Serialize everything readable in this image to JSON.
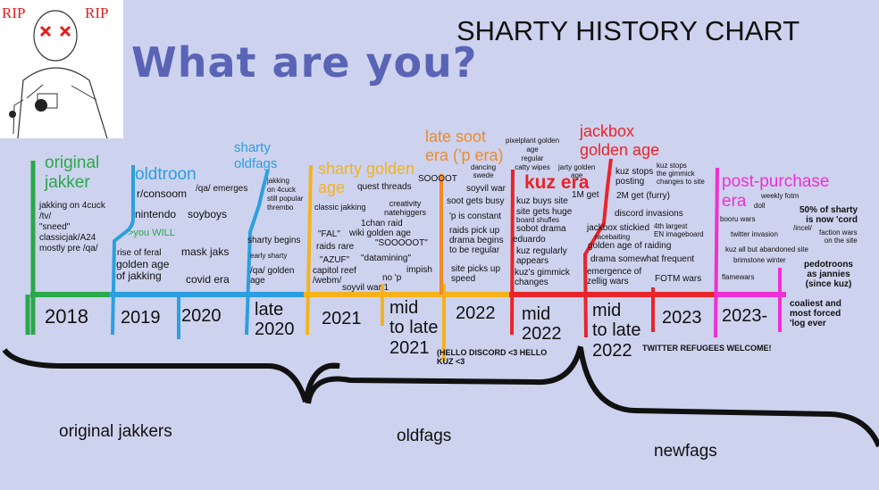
{
  "header": {
    "question": "What are you?",
    "chart_title": "SHARTY HISTORY CHART",
    "rip_left": "RIP",
    "rip_right": "RIP"
  },
  "eras": [
    {
      "label": "original\njakker",
      "color": "#2aa84a"
    },
    {
      "label": "oldtroon",
      "color": "#2b9fe0"
    },
    {
      "label": "sharty\noldfags",
      "color": "#2b9fe0"
    },
    {
      "label": "sharty golden\nage",
      "color": "#f6b21b"
    },
    {
      "label": "late soot\nera ('p era)",
      "color": "#f08a24"
    },
    {
      "label": "kuz era",
      "color": "#e8252a"
    },
    {
      "label": "jackbox\ngolden age",
      "color": "#e8252a"
    },
    {
      "label": "post-purchase\nera",
      "color": "#ee2fd6"
    }
  ],
  "years": [
    "2018",
    "2019",
    "2020",
    "late\n2020",
    "2021",
    "mid\nto late\n2021",
    "2022",
    "mid\n2022",
    "mid\nto late\n2022",
    "2023",
    "2023-"
  ],
  "events": {
    "e_oj1": "jakking on 4cuck\n/tv/\n\"sneed\"\nclassicjak/A24\nmostly pre /qa/",
    "e_ot1": "r/consoom",
    "e_ot2": "nintendo",
    "e_ot3": "soyboys",
    "e_ot4": ">you WILL",
    "e_ot5": "rise of feral",
    "e_ot6": "golden age\nof jakking",
    "e_ot7": "/qa/ emerges",
    "e_ot8": "mask jaks",
    "e_ot9": "covid era",
    "e_sf1": "jakking\non 4cuck\nstill popular\nthrembo",
    "e_sf2": "sharty begins",
    "e_sf3": "early sharty",
    "e_sf4": "/qa/ golden\nage",
    "e_ga1": "quest threads",
    "e_ga2": "classic jakking",
    "e_ga3": "creativity\nnatehiggers",
    "e_ga4": "1chan raid",
    "e_ga5": "\"FAL\"",
    "e_ga6": "wiki golden age",
    "e_ga7": "\"SOOOOOT\"",
    "e_ga8": "raids rare",
    "e_ga9": "\"AZUF\"",
    "e_ga10": "\"datamining\"",
    "e_ga11": "capitol reef\n/webm/",
    "e_ga12": "soyvil war 1",
    "e_ga13": "no 'p",
    "e_ga14": "impish",
    "e_ls1": "SOOOOT",
    "e_ls2": "dancing\nswede",
    "e_ls3": "soyvil war",
    "e_ls4": "soot gets busy",
    "e_ls5": "'p is constant",
    "e_ls6": "raids pick up\ndrama begins\nto be regular",
    "e_ls7": "site picks up\nspeed",
    "e_kz0": "pixelplant golden\nage\nregular\ncatty wipes",
    "e_kz1": "jarty golden\nage",
    "e_kz2": "1M get",
    "e_kz3": "kuz buys site",
    "e_kz4": "site gets huge",
    "e_kz5": "board shufles",
    "e_kz6": "sobot drama",
    "e_kz7": "eduardo",
    "e_kz8": "kuz regularly\nappears",
    "e_kz9": "kuz's gimmick\nchanges",
    "e_jb1": "kuz stops\nposting",
    "e_jb2": "kuz stops\nthe gimmick\nchanges to site",
    "e_jb3": "2M get (furry)",
    "e_jb4": "discord invasions",
    "e_jb5": "jackbox stickied",
    "e_jb6": "racebaiting",
    "e_jb7": "4th largest\nEN imageboard",
    "e_jb8": "golden age of raiding",
    "e_jb9": "drama somewhat frequent",
    "e_jb10": "emergence of\nzellig wars",
    "e_jb11": "FOTM wars",
    "e_pp1": "weekly fotm",
    "e_pp2": "doll",
    "e_pp3": "booru wars",
    "e_pp4": "twitter invasion",
    "e_pp5": "/incel/",
    "e_pp6": "faction wars\non the site",
    "e_pp7": "kuz all but abandoned site",
    "e_pp8": "brimstone winter",
    "e_pp9": "flamewars",
    "e_pp10": "50% of sharty\nis now 'cord",
    "e_pp11": "pedotroons\nas jannies\n(since kuz)",
    "e_pp12": "coaliest and\nmost forced\n'log ever"
  },
  "notes": {
    "hello": "(HELLO DISCORD <3 HELLO\nKUZ <3",
    "twitter": "TWITTER REFUGEES WELCOME!"
  },
  "groups": [
    "original jakkers",
    "oldfags",
    "newfags"
  ]
}
